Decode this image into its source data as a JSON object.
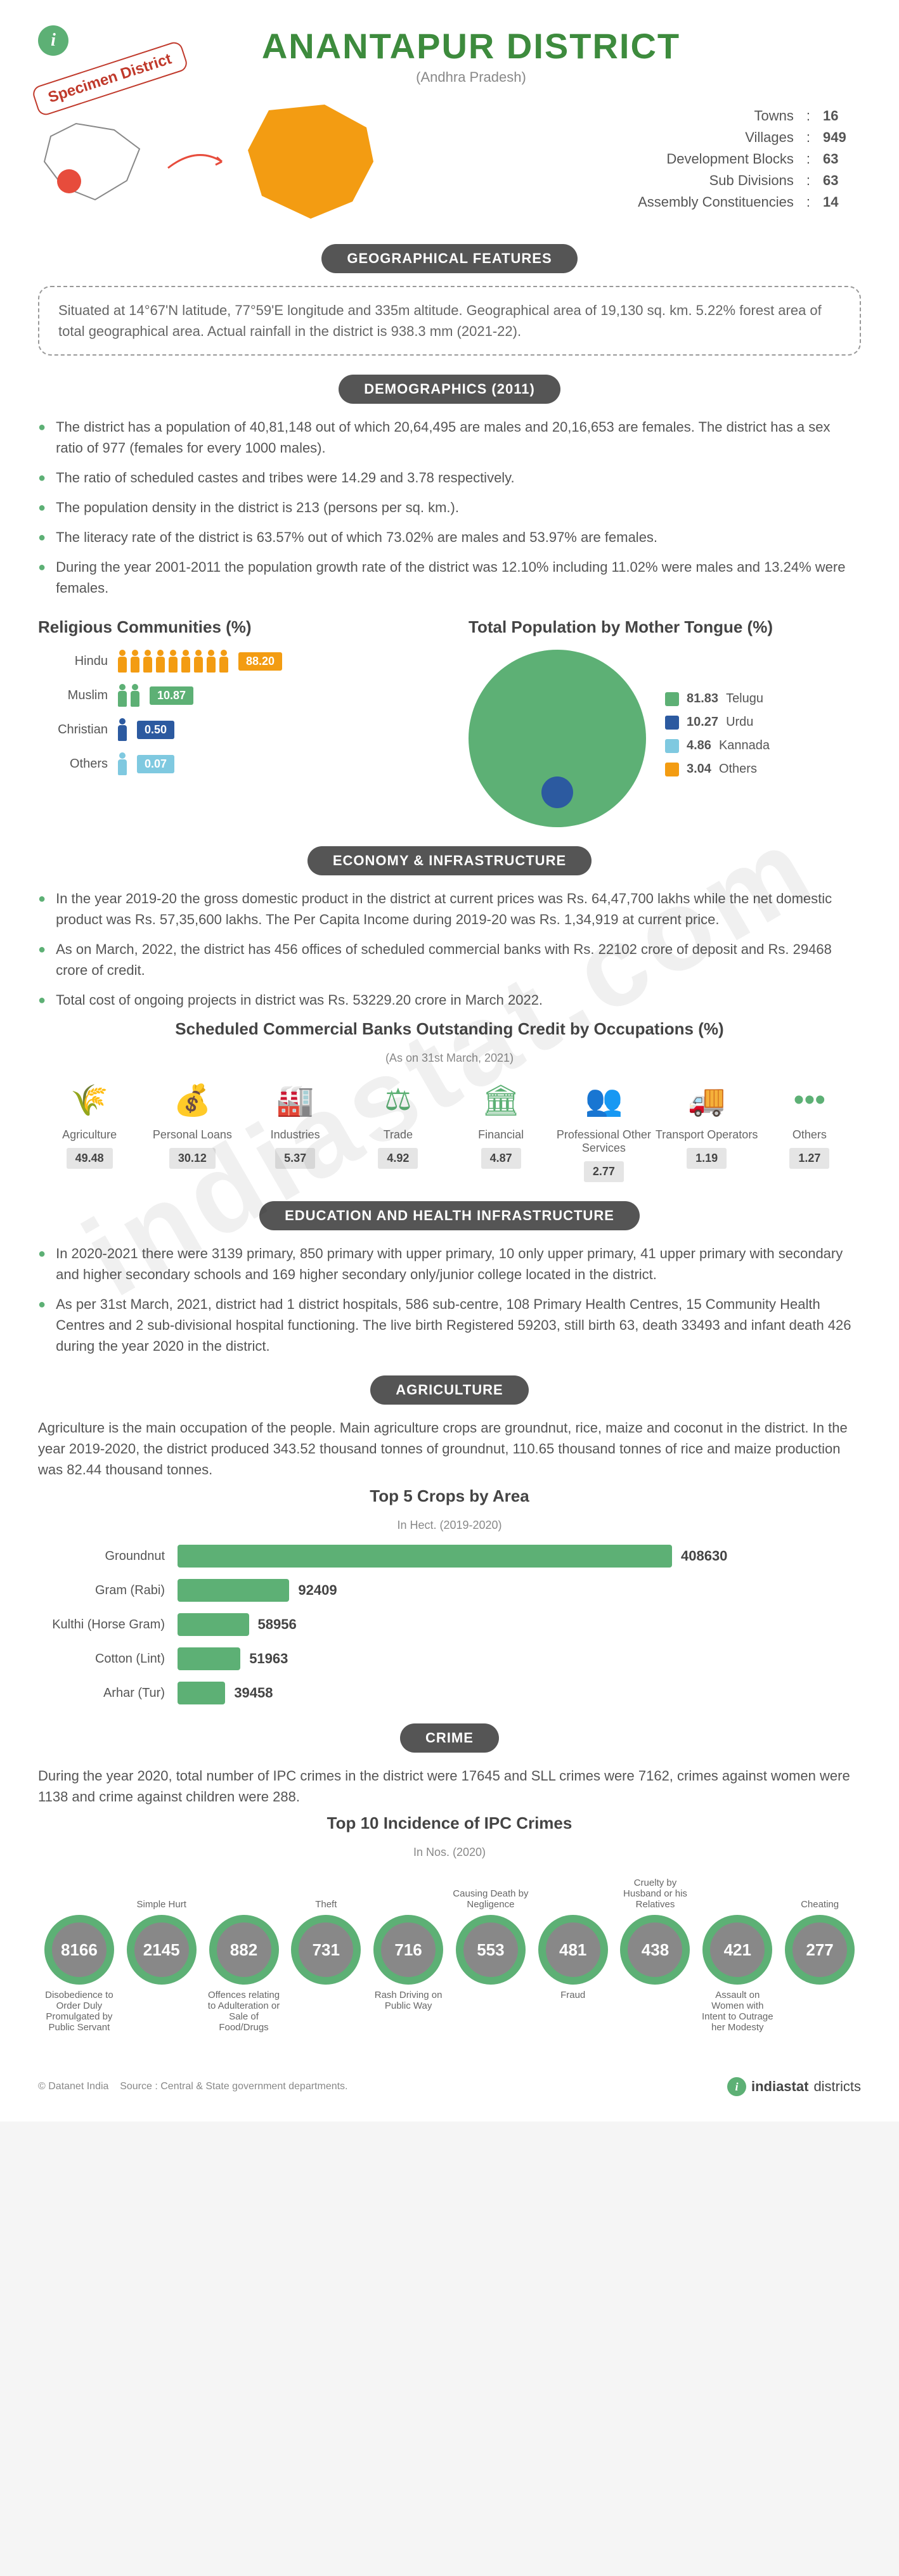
{
  "header": {
    "title": "ANANTAPUR DISTRICT",
    "subtitle": "(Andhra Pradesh)",
    "specimen": "Specimen District"
  },
  "stats": [
    {
      "label": "Towns",
      "value": "16"
    },
    {
      "label": "Villages",
      "value": "949"
    },
    {
      "label": "Development Blocks",
      "value": "63"
    },
    {
      "label": "Sub Divisions",
      "value": "63"
    },
    {
      "label": "Assembly Constituencies",
      "value": "14"
    }
  ],
  "geo": {
    "title": "GEOGRAPHICAL FEATURES",
    "text": "Situated at 14°67'N latitude, 77°59'E longitude and 335m altitude. Geographical area of 19,130 sq. km. 5.22% forest area of total geographical area. Actual rainfall in the district is 938.3 mm (2021-22)."
  },
  "demographics": {
    "title": "DEMOGRAPHICS (2011)",
    "bullets": [
      "The district has a population of 40,81,148 out of which 20,64,495 are males and 20,16,653 are females. The district has a sex ratio of 977 (females for every 1000 males).",
      "The ratio of scheduled castes and tribes were 14.29 and 3.78 respectively.",
      "The population density in the district is 213 (persons per sq. km.).",
      "The literacy rate of the district is 63.57% out of which 73.02% are males and 53.97% are females.",
      "During the year 2001-2011 the population growth rate of the district was 12.10% including 11.02% were males and 13.24% were females."
    ]
  },
  "religion": {
    "title": "Religious Communities (%)",
    "rows": [
      {
        "label": "Hindu",
        "value": "88.20",
        "color": "#f39c12",
        "icons": 9
      },
      {
        "label": "Muslim",
        "value": "10.87",
        "color": "#5db075",
        "icons": 2
      },
      {
        "label": "Christian",
        "value": "0.50",
        "color": "#2c5aa0",
        "icons": 1
      },
      {
        "label": "Others",
        "value": "0.07",
        "color": "#7fc9e0",
        "icons": 1
      }
    ]
  },
  "mothertongue": {
    "title": "Total Population by Mother Tongue (%)",
    "pie_bg": "#5db075",
    "slice_color": "#2c5aa0",
    "items": [
      {
        "value": "81.83",
        "label": "Telugu",
        "color": "#5db075"
      },
      {
        "value": "10.27",
        "label": "Urdu",
        "color": "#2c5aa0"
      },
      {
        "value": "4.86",
        "label": "Kannada",
        "color": "#7fc9e0"
      },
      {
        "value": "3.04",
        "label": "Others",
        "color": "#f39c12"
      }
    ]
  },
  "economy": {
    "title": "ECONOMY & INFRASTRUCTURE",
    "bullets": [
      "In the year 2019-20 the gross domestic product in the district at current prices was Rs. 64,47,700 lakhs while the net domestic product was Rs. 57,35,600 lakhs. The Per Capita Income during 2019-20 was Rs. 1,34,919 at current price.",
      "As on March, 2022, the district has 456 offices of scheduled commercial banks with Rs. 22102 crore of deposit and Rs. 29468 crore of credit.",
      "Total cost of ongoing projects in district was Rs. 53229.20 crore in March 2022."
    ],
    "credit_title": "Scheduled Commercial Banks Outstanding Credit by Occupations (%)",
    "credit_note": "(As on 31st March, 2021)",
    "credit": [
      {
        "label": "Agriculture",
        "value": "49.48",
        "glyph": "🌾"
      },
      {
        "label": "Personal Loans",
        "value": "30.12",
        "glyph": "💰"
      },
      {
        "label": "Industries",
        "value": "5.37",
        "glyph": "🏭"
      },
      {
        "label": "Trade",
        "value": "4.92",
        "glyph": "⚖"
      },
      {
        "label": "Financial",
        "value": "4.87",
        "glyph": "🏛"
      },
      {
        "label": "Professional Other Services",
        "value": "2.77",
        "glyph": "👥"
      },
      {
        "label": "Transport Operators",
        "value": "1.19",
        "glyph": "🚚"
      },
      {
        "label": "Others",
        "value": "1.27",
        "glyph": "•••"
      }
    ]
  },
  "education": {
    "title": "EDUCATION AND HEALTH INFRASTRUCTURE",
    "bullets": [
      "In 2020-2021 there were 3139 primary, 850 primary with upper primary, 10 only upper primary, 41 upper primary with secondary and higher secondary schools and 169 higher secondary only/junior college located in the district.",
      "As per 31st March, 2021, district had 1 district hospitals, 586 sub-centre, 108 Primary Health Centres, 15 Community Health Centres and 2 sub-divisional hospital functioning. The live birth Registered 59203, still birth 63, death 33493 and infant death 426 during the year 2020 in the district."
    ]
  },
  "agriculture": {
    "title": "AGRICULTURE",
    "para": "Agriculture is the main occupation of the people. Main agriculture crops are groundnut, rice, maize and coconut in the district. In the year 2019-2020, the district produced 343.52 thousand tonnes of groundnut, 110.65 thousand tonnes of rice and maize production was 82.44 thousand tonnes.",
    "chart_title": "Top 5 Crops by Area",
    "chart_note": "In Hect. (2019-2020)",
    "max": 408630,
    "bar_color": "#5db075",
    "crops": [
      {
        "label": "Groundnut",
        "value": 408630
      },
      {
        "label": "Gram (Rabi)",
        "value": 92409
      },
      {
        "label": "Kulthi (Horse Gram)",
        "value": 58956
      },
      {
        "label": "Cotton (Lint)",
        "value": 51963
      },
      {
        "label": "Arhar (Tur)",
        "value": 39458
      }
    ]
  },
  "crime": {
    "title": "CRIME",
    "para": "During the year 2020, total number of IPC crimes in the district were 17645 and SLL crimes were 7162, crimes against women were 1138 and crime against children were 288.",
    "chart_title": "Top 10 Incidence of IPC Crimes",
    "chart_note": "In Nos. (2020)",
    "ring_color": "#5db075",
    "fill_color": "#888888",
    "items": [
      {
        "label": "Disobedience to Order Duly Promulgated by Public Servant",
        "value": "8166",
        "below": true
      },
      {
        "label": "Simple Hurt",
        "value": "2145",
        "below": false
      },
      {
        "label": "Offences relating to Adulteration or Sale of Food/Drugs",
        "value": "882",
        "below": true
      },
      {
        "label": "Theft",
        "value": "731",
        "below": false
      },
      {
        "label": "Rash Driving on Public Way",
        "value": "716",
        "below": true
      },
      {
        "label": "Causing Death by Negligence",
        "value": "553",
        "below": false
      },
      {
        "label": "Fraud",
        "value": "481",
        "below": true
      },
      {
        "label": "Cruelty by Husband or his Relatives",
        "value": "438",
        "below": false
      },
      {
        "label": "Assault on Women with Intent to Outrage her Modesty",
        "value": "421",
        "below": true
      },
      {
        "label": "Cheating",
        "value": "277",
        "below": false
      }
    ]
  },
  "footer": {
    "copyright": "© Datanet India",
    "source": "Source : Central & State government departments.",
    "brand1": "indiastat",
    "brand2": "districts"
  },
  "watermark": "indiastat.com",
  "colors": {
    "primary_green": "#5db075",
    "dark_pill": "#555555",
    "text": "#555555",
    "orange": "#f39c12",
    "red": "#e74c3c"
  }
}
